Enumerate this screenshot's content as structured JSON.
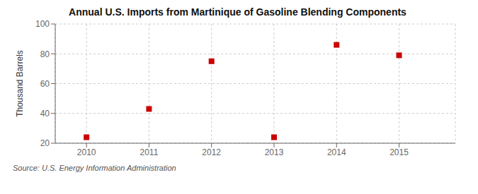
{
  "chart_data": {
    "type": "scatter",
    "title": "Annual U.S. Imports from Martinique of Gasoline Blending Components",
    "ylabel": "Thousand Barrels",
    "source": "Source: U.S. Energy Information Administration",
    "x": [
      2010,
      2011,
      2012,
      2013,
      2014,
      2015
    ],
    "values": [
      24,
      43,
      75,
      24,
      86,
      79
    ],
    "xlim": [
      2009.5,
      2015.9
    ],
    "ylim": [
      20,
      100
    ],
    "xticks": [
      2010,
      2011,
      2012,
      2013,
      2014,
      2015
    ],
    "yticks": [
      20,
      40,
      60,
      80,
      100
    ],
    "color": "#cc0000",
    "marker": "square",
    "grid": true
  }
}
